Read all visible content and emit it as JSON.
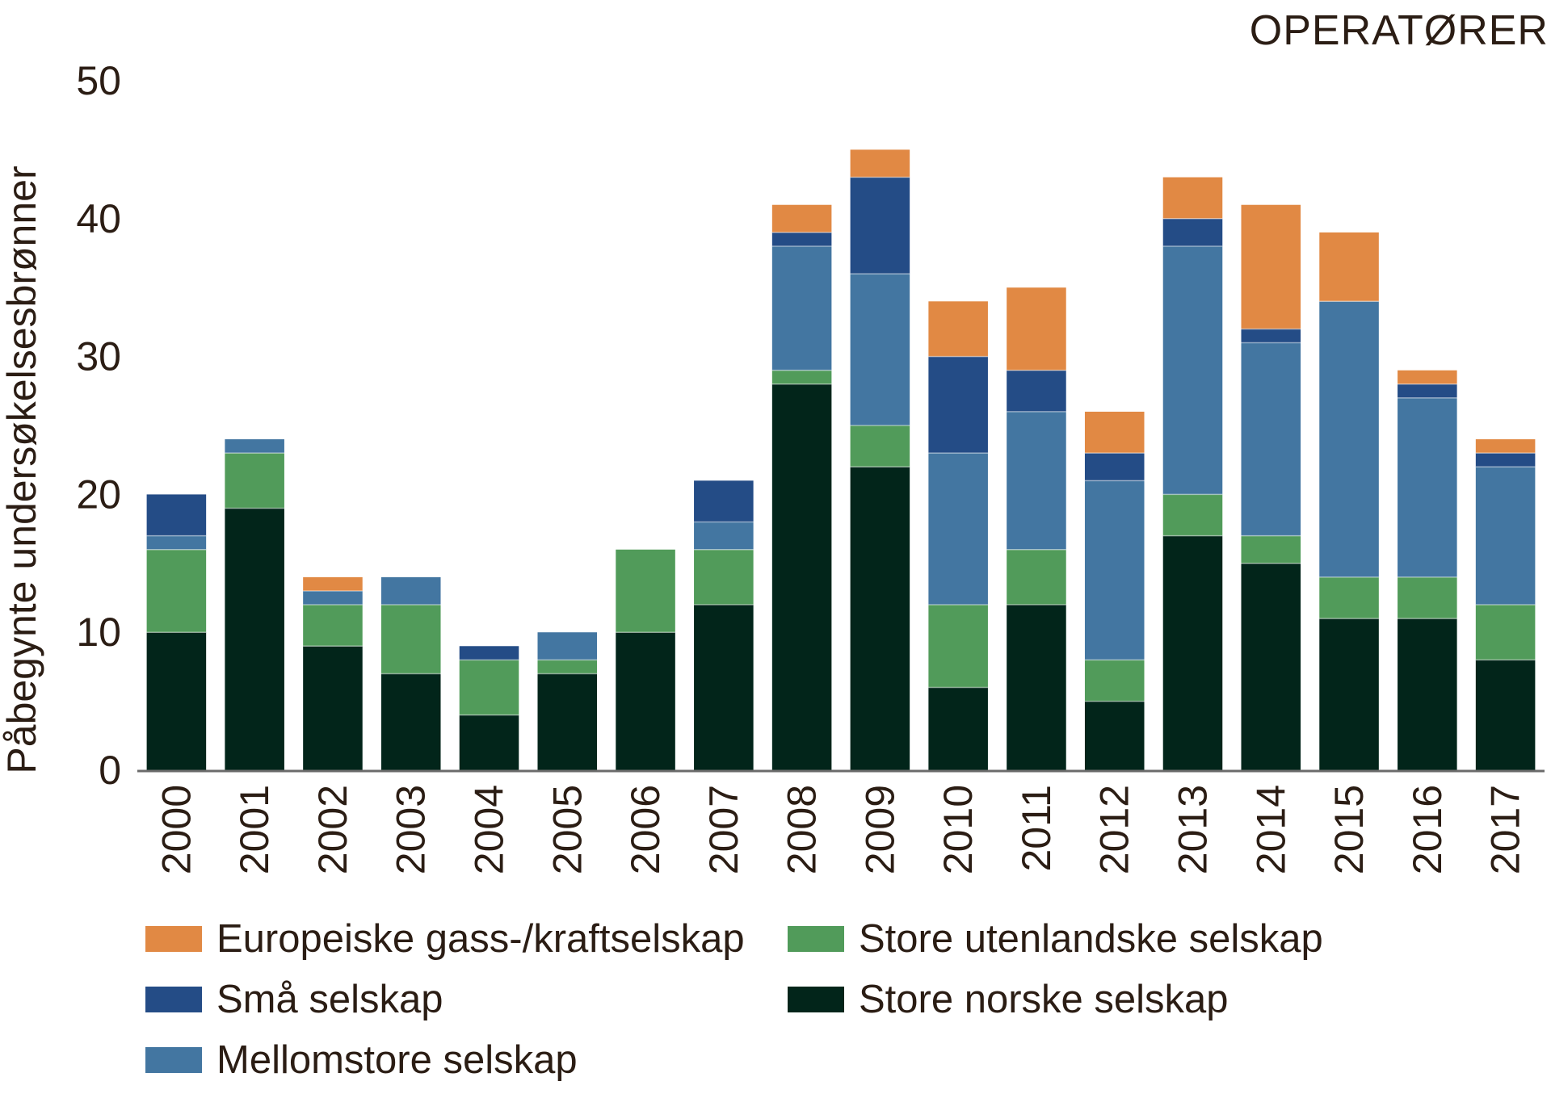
{
  "corner_label": "OPERATØRER",
  "chart_data": {
    "type": "bar",
    "stacked": true,
    "title": "",
    "xlabel": "",
    "ylabel": "Påbegynte undersøkelsesbrønner",
    "ylim": [
      0,
      50
    ],
    "yticks": [
      0,
      10,
      20,
      30,
      40,
      50
    ],
    "grid": false,
    "legend_position": "bottom",
    "categories": [
      "2000",
      "2001",
      "2002",
      "2003",
      "2004",
      "2005",
      "2006",
      "2007",
      "2008",
      "2009",
      "2010",
      "2011",
      "2012",
      "2013",
      "2014",
      "2015",
      "2016",
      "2017"
    ],
    "series": [
      {
        "name": "Store norske selskap",
        "color": "#02251a",
        "values": [
          10,
          19,
          9,
          7,
          4,
          7,
          10,
          12,
          28,
          22,
          6,
          12,
          5,
          17,
          15,
          11,
          11,
          8
        ]
      },
      {
        "name": "Store utenlandske selskap",
        "color": "#519b5a",
        "values": [
          6,
          4,
          3,
          5,
          4,
          1,
          6,
          4,
          1,
          3,
          6,
          4,
          3,
          3,
          2,
          3,
          3,
          4
        ]
      },
      {
        "name": "Mellomstore selskap",
        "color": "#4376a1",
        "values": [
          1,
          1,
          1,
          2,
          0,
          2,
          0,
          2,
          9,
          11,
          11,
          10,
          13,
          18,
          14,
          20,
          13,
          10
        ]
      },
      {
        "name": "Små selskap",
        "color": "#244c86",
        "values": [
          3,
          0,
          0,
          0,
          1,
          0,
          0,
          3,
          1,
          7,
          7,
          3,
          2,
          2,
          1,
          0,
          1,
          1
        ]
      },
      {
        "name": "Europeiske gass-/kraftselskap",
        "color": "#e18944",
        "values": [
          0,
          0,
          1,
          0,
          0,
          0,
          0,
          0,
          2,
          2,
          4,
          6,
          3,
          3,
          9,
          5,
          1,
          1
        ]
      }
    ],
    "legend_order": [
      "Europeiske gass-/kraftselskap",
      "Små selskap",
      "Mellomstore selskap",
      "Store utenlandske selskap",
      "Store norske selskap"
    ]
  }
}
